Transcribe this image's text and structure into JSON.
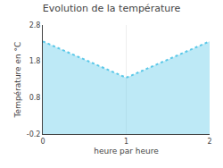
{
  "chart_data": {
    "type": "area",
    "title": "Evolution de la température",
    "xlabel": "heure par heure",
    "ylabel": "Température en °C",
    "x": [
      0,
      1,
      2
    ],
    "values": [
      2.35,
      1.35,
      2.35
    ],
    "xlim": [
      0,
      2
    ],
    "xticks": [
      0,
      1,
      2
    ],
    "ylim": [
      -0.2,
      2.8
    ],
    "yticks": [
      -0.2,
      0.8,
      1.8,
      2.8
    ],
    "color": "#5bc8e8",
    "line_style": "dotted",
    "grid": "x"
  }
}
